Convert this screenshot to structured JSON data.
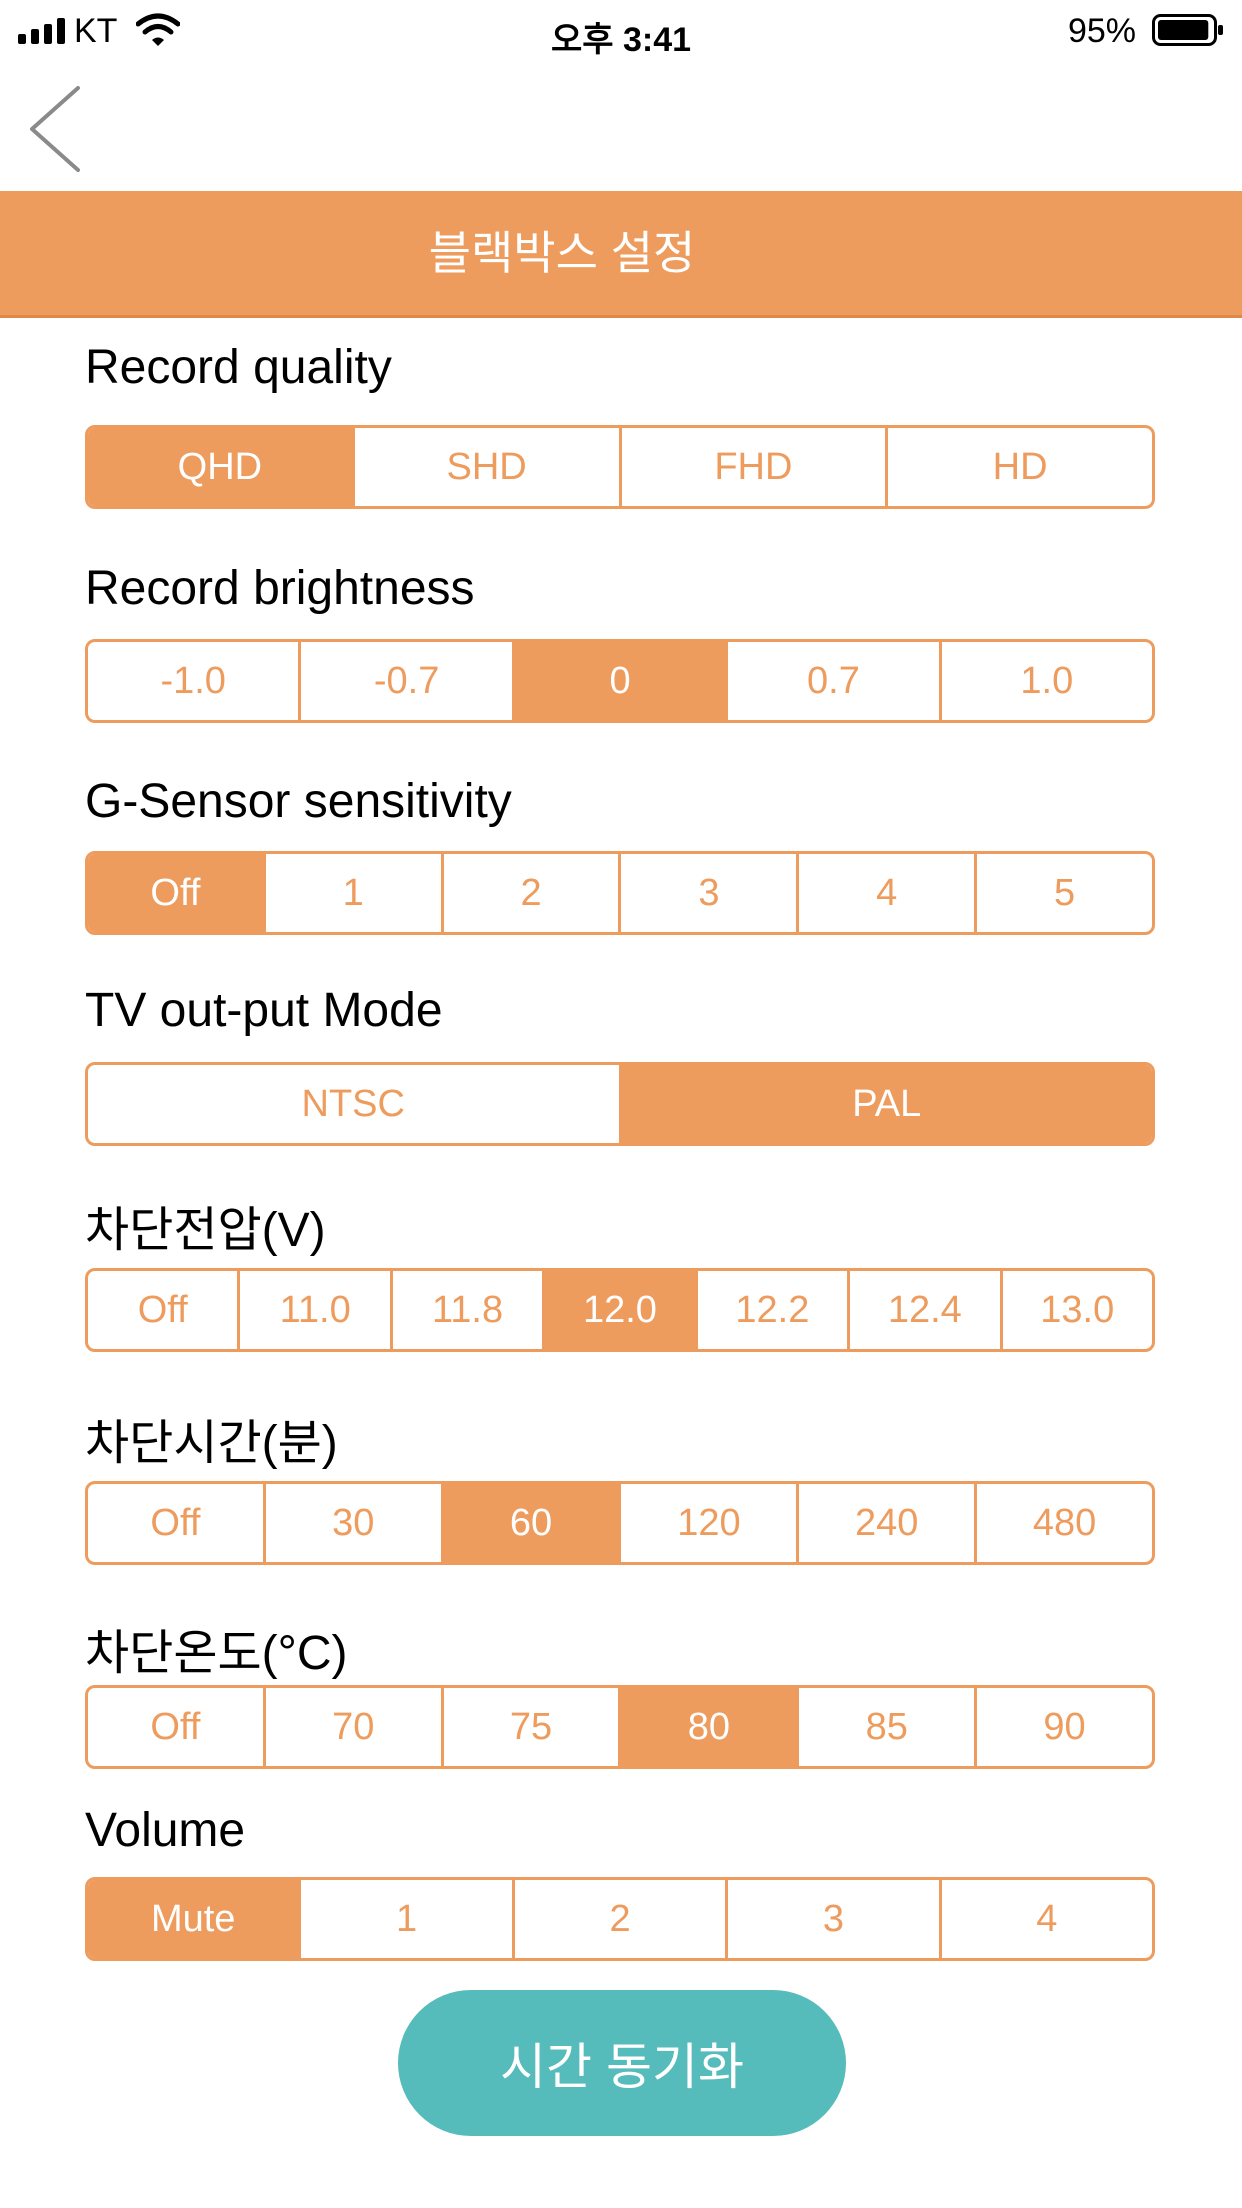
{
  "status_bar": {
    "carrier": "KT",
    "time": "오후 3:41",
    "battery": "95%",
    "battery_level": 0.95
  },
  "header": {
    "title": "블랙박스 설정"
  },
  "settings": [
    {
      "label": "Record quality",
      "options": [
        "QHD",
        "SHD",
        "FHD",
        "HD"
      ],
      "selected": 0
    },
    {
      "label": "Record brightness",
      "options": [
        "-1.0",
        "-0.7",
        "0",
        "0.7",
        "1.0"
      ],
      "selected": 2
    },
    {
      "label": "G-Sensor sensitivity",
      "options": [
        "Off",
        "1",
        "2",
        "3",
        "4",
        "5"
      ],
      "selected": 0
    },
    {
      "label": "TV out-put Mode",
      "options": [
        "NTSC",
        "PAL"
      ],
      "selected": 1
    },
    {
      "label": "차단전압(V)",
      "options": [
        "Off",
        "11.0",
        "11.8",
        "12.0",
        "12.2",
        "12.4",
        "13.0"
      ],
      "selected": 3
    },
    {
      "label": "차단시간(분)",
      "options": [
        "Off",
        "30",
        "60",
        "120",
        "240",
        "480"
      ],
      "selected": 2
    },
    {
      "label": "차단온도(°C)",
      "options": [
        "Off",
        "70",
        "75",
        "80",
        "85",
        "90"
      ],
      "selected": 3
    },
    {
      "label": "Volume",
      "options": [
        "Mute",
        "1",
        "2",
        "3",
        "4"
      ],
      "selected": 0
    }
  ],
  "sync_button": {
    "label": "시간 동기화"
  },
  "colors": {
    "accent": "#ee9c5e",
    "sync": "#55bcbb"
  },
  "icons": {
    "back": "chevron-left-icon",
    "signal": "signal-icon",
    "wifi": "wifi-icon",
    "battery": "battery-icon"
  }
}
